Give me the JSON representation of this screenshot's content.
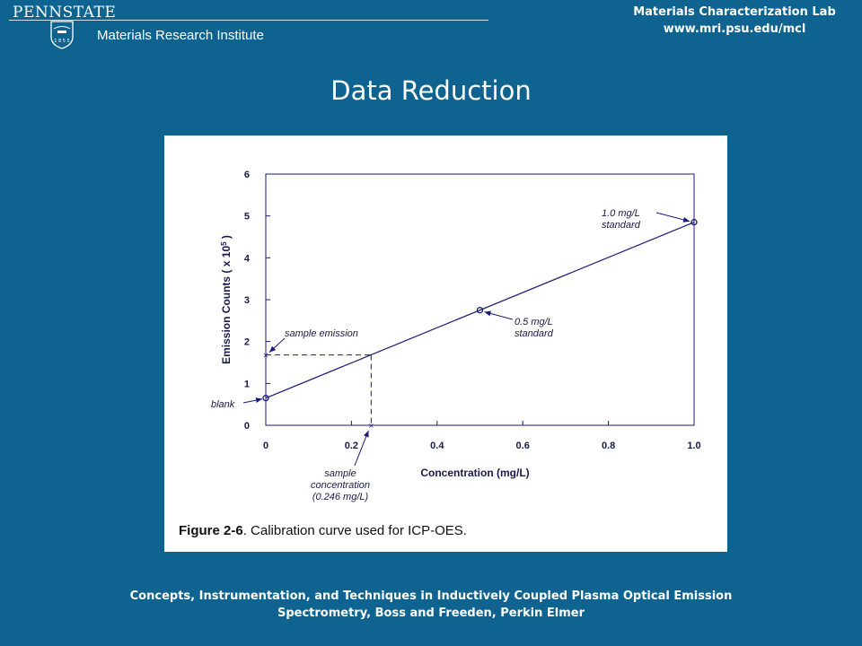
{
  "header": {
    "institution": "PENNSTATE",
    "shield_year": "1 8 5 5",
    "institute": "Materials Research Institute",
    "lab_name": "Materials Characterization Lab",
    "lab_url": "www.mri.psu.edu/mcl"
  },
  "slide_title": "Data Reduction",
  "caption": {
    "label": "Figure 2-6",
    "text": ". Calibration curve used for ICP-OES."
  },
  "citation": {
    "line1": "Concepts, Instrumentation, and Techniques in Inductively Coupled Plasma Optical Emission",
    "line2": "Spectrometry, Boss and Freeden, Perkin Elmer"
  },
  "colors": {
    "background": "#0f6390",
    "figure_bg": "#ffffff",
    "line": "#1a1a7a"
  },
  "chart_data": {
    "type": "line",
    "title": "",
    "xlabel": "Concentration (mg/L)",
    "ylabel_prefix": "Emission Counts ( x 10",
    "ylabel_exp": "5",
    "ylabel_suffix": " )",
    "xlim": [
      0,
      1.0
    ],
    "ylim": [
      0,
      6
    ],
    "x_ticks": [
      0,
      0.2,
      0.4,
      0.6,
      0.8,
      1.0
    ],
    "x_tick_labels": [
      "0",
      "0.2",
      "0.4",
      "0.6",
      "0.8",
      "1.0"
    ],
    "y_ticks": [
      0,
      1,
      2,
      3,
      4,
      5,
      6
    ],
    "y_tick_labels": [
      "0",
      "1",
      "2",
      "3",
      "4",
      "5",
      "6"
    ],
    "grid": false,
    "series": [
      {
        "x": [
          0,
          1.0
        ],
        "y": [
          0.65,
          4.85
        ]
      }
    ],
    "standards": [
      {
        "x": 0,
        "y": 0.65
      },
      {
        "x": 0.5,
        "y": 2.75
      },
      {
        "x": 1.0,
        "y": 4.85
      }
    ],
    "sample": {
      "x": 0.246,
      "y": 1.68
    },
    "annotations": [
      {
        "id": "blank",
        "lines": [
          "blank"
        ]
      },
      {
        "id": "sample-emission",
        "lines": [
          "sample  emission"
        ]
      },
      {
        "id": "half-standard",
        "lines": [
          "0.5 mg/L",
          "standard"
        ]
      },
      {
        "id": "one-standard",
        "lines": [
          "1.0 mg/L",
          "standard"
        ]
      },
      {
        "id": "sample-concentration",
        "lines": [
          "sample",
          "concentration",
          "(0.246 mg/L)"
        ]
      }
    ]
  }
}
